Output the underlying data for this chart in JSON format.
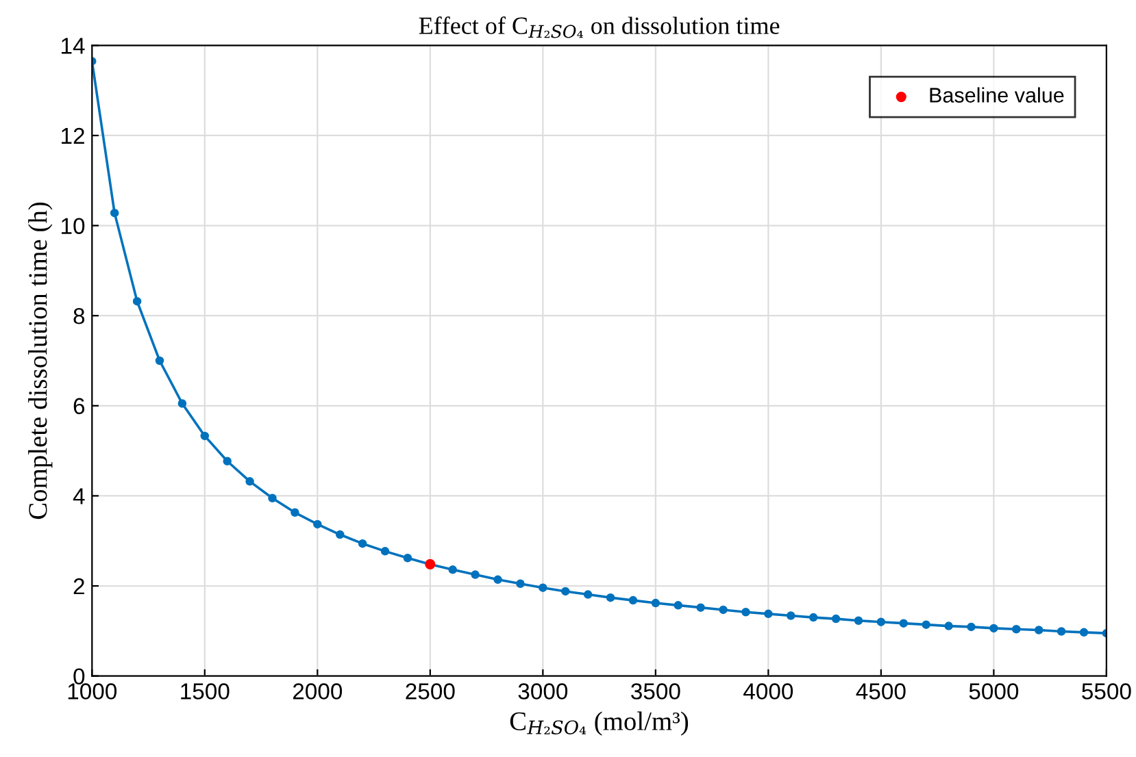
{
  "chart_data": {
    "type": "line",
    "title": "Effect of C$_{H₂SO₄}$ on dissolution time",
    "xlabel": "C$_{H₂SO₄}$ (mol/m³)",
    "ylabel": "Complete dissolution time (h)",
    "x": [
      1000,
      1100,
      1200,
      1300,
      1400,
      1500,
      1600,
      1700,
      1800,
      1900,
      2000,
      2100,
      2200,
      2300,
      2400,
      2500,
      2600,
      2700,
      2800,
      2900,
      3000,
      3100,
      3200,
      3300,
      3400,
      3500,
      3600,
      3700,
      3800,
      3900,
      4000,
      4100,
      4200,
      4300,
      4400,
      4500,
      4600,
      4700,
      4800,
      4900,
      5000,
      5100,
      5200,
      5300,
      5400,
      5500
    ],
    "series": [
      {
        "type": "line",
        "color": "#0072bd",
        "marker": "circle",
        "values": [
          13.65,
          10.28,
          8.32,
          7.0,
          6.05,
          5.33,
          4.77,
          4.32,
          3.95,
          3.63,
          3.37,
          3.14,
          2.94,
          2.77,
          2.62,
          2.48,
          2.36,
          2.25,
          2.14,
          2.05,
          1.96,
          1.88,
          1.81,
          1.74,
          1.68,
          1.62,
          1.57,
          1.52,
          1.47,
          1.42,
          1.38,
          1.34,
          1.3,
          1.27,
          1.23,
          1.2,
          1.17,
          1.14,
          1.11,
          1.09,
          1.06,
          1.04,
          1.02,
          0.99,
          0.97,
          0.95
        ]
      },
      {
        "type": "scatter",
        "name": "Baseline value",
        "color": "#ff0000",
        "marker": "circle",
        "x": [
          2500
        ],
        "values": [
          2.48
        ]
      }
    ],
    "xlim": [
      1000,
      5500
    ],
    "xticks": [
      1000,
      1500,
      2000,
      2500,
      3000,
      3500,
      4000,
      4500,
      5000,
      5500
    ],
    "ylim": [
      0,
      14
    ],
    "yticks": [
      0,
      2,
      4,
      6,
      8,
      10,
      12,
      14
    ],
    "grid": true,
    "legend": "top right"
  }
}
